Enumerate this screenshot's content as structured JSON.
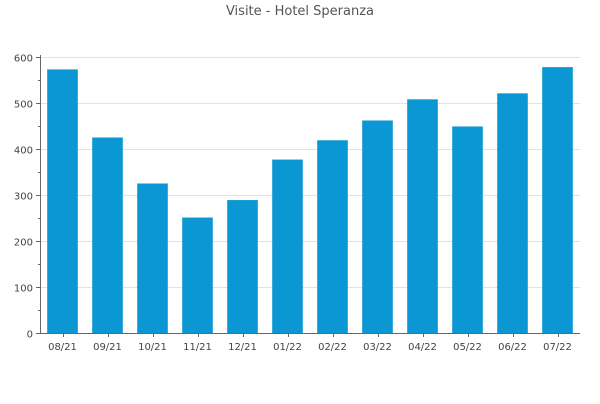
{
  "chart_data": {
    "type": "bar",
    "title": "Visite - Hotel Speranza",
    "xlabel": "",
    "ylabel": "",
    "categories": [
      "08/21",
      "09/21",
      "10/21",
      "11/21",
      "12/21",
      "01/22",
      "02/22",
      "03/22",
      "04/22",
      "05/22",
      "06/22",
      "07/22"
    ],
    "values": [
      573,
      425,
      325,
      251,
      289,
      377,
      419,
      462,
      508,
      449,
      521,
      578
    ],
    "ylim": [
      0,
      600
    ],
    "yticks": [
      0,
      100,
      200,
      300,
      400,
      500,
      600
    ],
    "grid": true,
    "legend": "none",
    "colors": {
      "bar": "#0a97d4",
      "axis": "#666666",
      "grid": "#e2e2e2",
      "text": "#444444",
      "title": "#555555"
    }
  }
}
